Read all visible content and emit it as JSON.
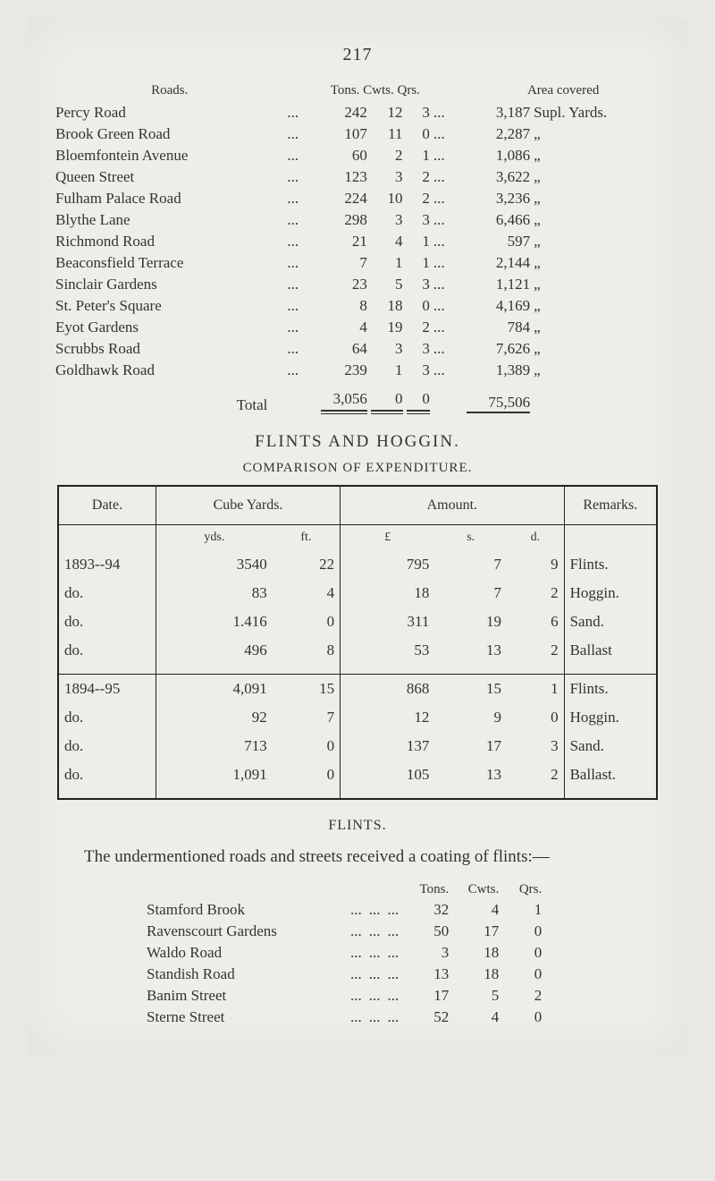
{
  "page_number": "217",
  "roads_table": {
    "headers": {
      "name": "Roads.",
      "tcq": "Tons. Cwts. Qrs.",
      "area": "Area covered"
    },
    "unit_first": "Supl. Yards.",
    "ditto": "„",
    "dots": "...",
    "rows": [
      {
        "name": "Percy Road",
        "t": "242",
        "c": "12",
        "q": "3",
        "area": "3,187",
        "unit_first": true
      },
      {
        "name": "Brook Green Road",
        "t": "107",
        "c": "11",
        "q": "0",
        "area": "2,287"
      },
      {
        "name": "Bloemfontein Avenue",
        "t": "60",
        "c": "2",
        "q": "1",
        "area": "1,086"
      },
      {
        "name": "Queen Street",
        "t": "123",
        "c": "3",
        "q": "2",
        "area": "3,622"
      },
      {
        "name": "Fulham Palace Road",
        "t": "224",
        "c": "10",
        "q": "2",
        "area": "3,236"
      },
      {
        "name": "Blythe Lane",
        "t": "298",
        "c": "3",
        "q": "3",
        "area": "6,466"
      },
      {
        "name": "Richmond Road",
        "t": "21",
        "c": "4",
        "q": "1",
        "area": "597"
      },
      {
        "name": "Beaconsfield Terrace",
        "t": "7",
        "c": "1",
        "q": "1",
        "area": "2,144"
      },
      {
        "name": "Sinclair Gardens",
        "t": "23",
        "c": "5",
        "q": "3",
        "area": "1,121"
      },
      {
        "name": "St. Peter's Square",
        "t": "8",
        "c": "18",
        "q": "0",
        "area": "4,169"
      },
      {
        "name": "Eyot Gardens",
        "t": "4",
        "c": "19",
        "q": "2",
        "area": "784"
      },
      {
        "name": "Scrubbs Road",
        "t": "64",
        "c": "3",
        "q": "3",
        "area": "7,626"
      },
      {
        "name": "Goldhawk Road",
        "t": "239",
        "c": "1",
        "q": "3",
        "area": "1,389"
      }
    ],
    "total": {
      "label": "Total",
      "t": "3,056",
      "c": "0",
      "q": "0",
      "area": "75,506"
    }
  },
  "flints_heading": "FLINTS AND HOGGIN.",
  "comparison_heading": "COMPARISON OF EXPENDITURE.",
  "comparison_table": {
    "headers": {
      "date": "Date.",
      "cube": "Cube Yards.",
      "amount": "Amount.",
      "remarks": "Remarks."
    },
    "sub_headers": {
      "yds": "yds.",
      "ft": "ft.",
      "l": "£",
      "s": "s.",
      "d": "d."
    },
    "group1": [
      {
        "date": "1893--94",
        "yds": "3540",
        "ft": "22",
        "l": "795",
        "s": "7",
        "d": "9",
        "rem": "Flints."
      },
      {
        "date": "do.",
        "yds": "83",
        "ft": "4",
        "l": "18",
        "s": "7",
        "d": "2",
        "rem": "Hoggin."
      },
      {
        "date": "do.",
        "yds": "1.416",
        "ft": "0",
        "l": "311",
        "s": "19",
        "d": "6",
        "rem": "Sand."
      },
      {
        "date": "do.",
        "yds": "496",
        "ft": "8",
        "l": "53",
        "s": "13",
        "d": "2",
        "rem": "Ballast"
      }
    ],
    "group2": [
      {
        "date": "1894--95",
        "yds": "4,091",
        "ft": "15",
        "l": "868",
        "s": "15",
        "d": "1",
        "rem": "Flints."
      },
      {
        "date": "do.",
        "yds": "92",
        "ft": "7",
        "l": "12",
        "s": "9",
        "d": "0",
        "rem": "Hoggin."
      },
      {
        "date": "do.",
        "yds": "713",
        "ft": "0",
        "l": "137",
        "s": "17",
        "d": "3",
        "rem": "Sand."
      },
      {
        "date": "do.",
        "yds": "1,091",
        "ft": "0",
        "l": "105",
        "s": "13",
        "d": "2",
        "rem": "Ballast."
      }
    ]
  },
  "flints_sub": "FLINTS.",
  "paragraph": "The undermentioned roads and streets received a coating of flints:—",
  "coating_table": {
    "headers": {
      "t": "Tons.",
      "c": "Cwts.",
      "q": "Qrs."
    },
    "dots": "...",
    "rows": [
      {
        "name": "Stamford Brook",
        "t": "32",
        "c": "4",
        "q": "1"
      },
      {
        "name": "Ravenscourt Gardens",
        "t": "50",
        "c": "17",
        "q": "0"
      },
      {
        "name": "Waldo Road",
        "t": "3",
        "c": "18",
        "q": "0"
      },
      {
        "name": "Standish Road",
        "t": "13",
        "c": "18",
        "q": "0"
      },
      {
        "name": "Banim Street",
        "t": "17",
        "c": "5",
        "q": "2"
      },
      {
        "name": "Sterne Street",
        "t": "52",
        "c": "4",
        "q": "0"
      }
    ]
  }
}
